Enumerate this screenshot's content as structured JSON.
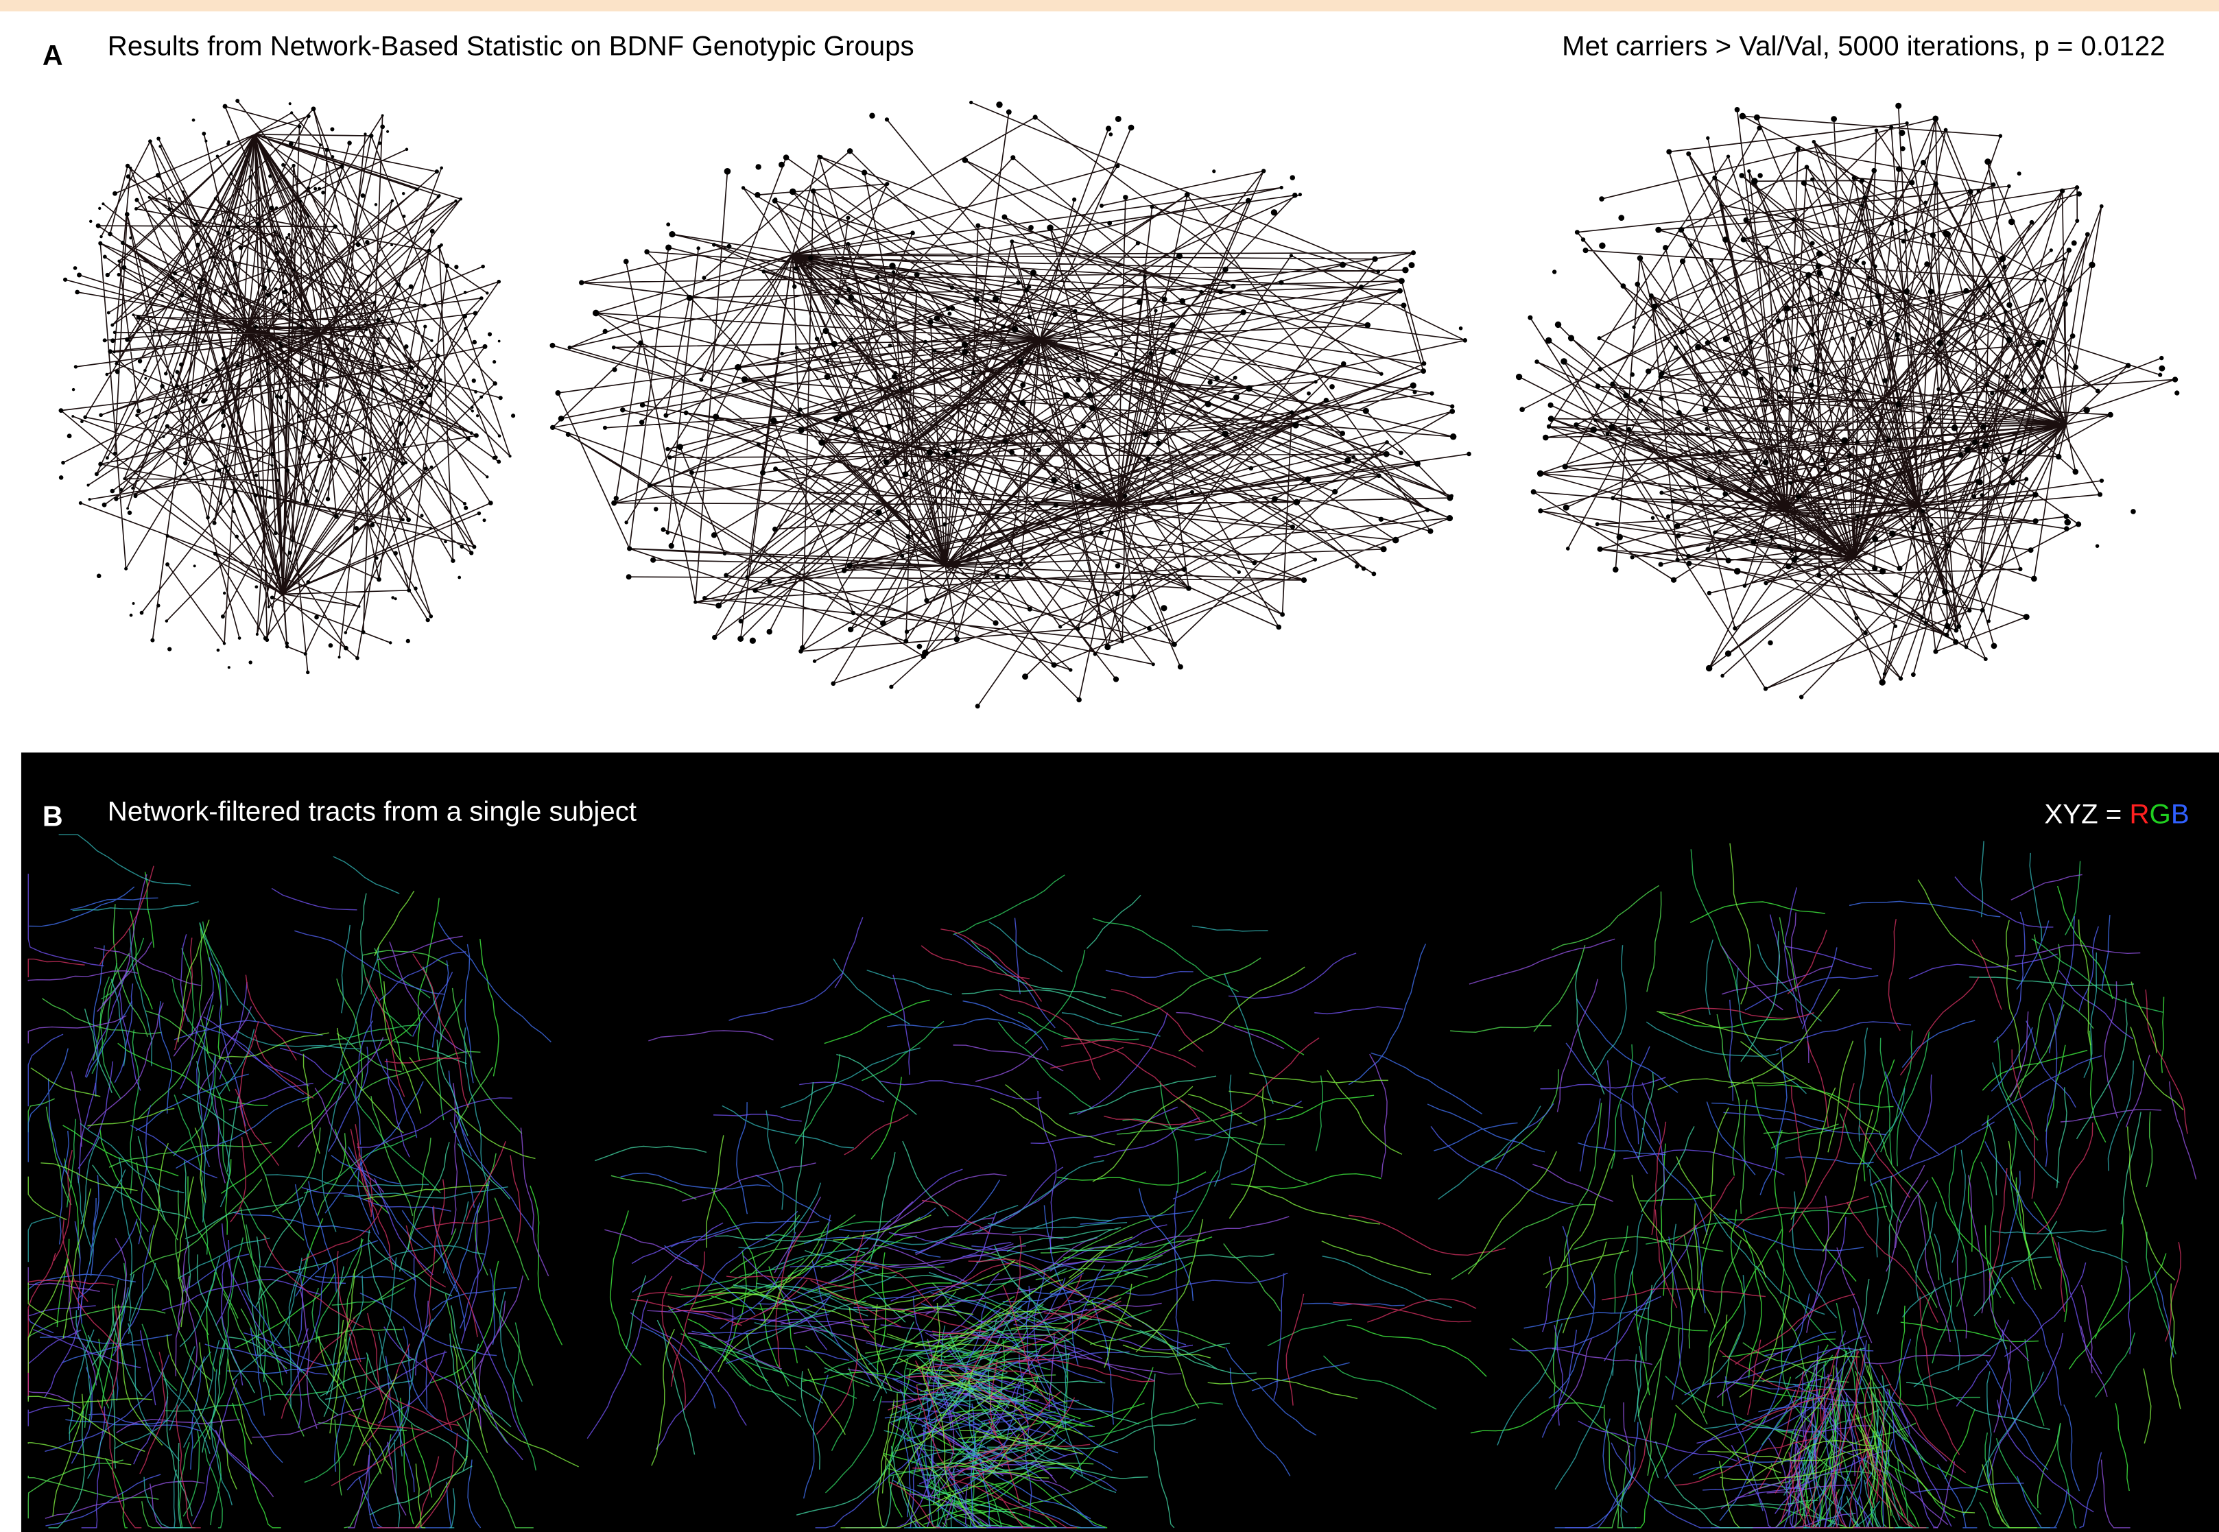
{
  "panel_a": {
    "label": "A",
    "title": "Results from Network-Based Statistic on BDNF Genotypic Groups",
    "stats": "Met carriers > Val/Val, 5000 iterations, p = 0.0122"
  },
  "panel_b": {
    "label": "B",
    "title": "Network-filtered tracts from a single subject",
    "legend": {
      "prefix": "XYZ = ",
      "letters": [
        "R",
        "G",
        "B"
      ]
    }
  }
}
